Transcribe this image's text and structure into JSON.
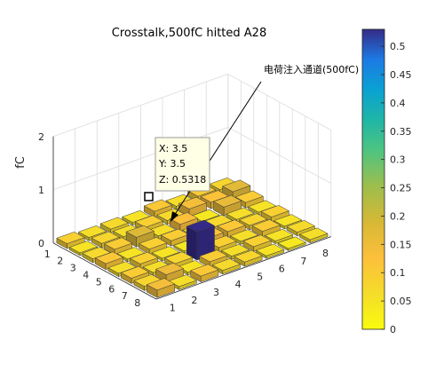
{
  "chart_data": {
    "type": "bar3",
    "title": "Crosstalk,500fC hitted A28",
    "zlabel": "fC",
    "xlabel": "",
    "ylabel": "",
    "x_ticks": [
      "1",
      "2",
      "3",
      "4",
      "5",
      "6",
      "7",
      "8"
    ],
    "y_ticks": [
      "1",
      "2",
      "3",
      "4",
      "5",
      "6",
      "7",
      "8"
    ],
    "z_ticks": [
      "0",
      "1",
      "2"
    ],
    "zlim": [
      0,
      2
    ],
    "colorbar": {
      "min": 0,
      "max": 0.53,
      "ticks": [
        "0",
        "0.05",
        "0.1",
        "0.15",
        "0.2",
        "0.25",
        "0.3",
        "0.35",
        "0.4",
        "0.45",
        "0.5"
      ],
      "colormap": "parula-reversed"
    },
    "grid": true,
    "values": [
      [
        0.14,
        0.06,
        0.11,
        0.07,
        0.08,
        0.05,
        0.04,
        0.06
      ],
      [
        0.08,
        0.15,
        0.05,
        0.1,
        0.06,
        0.09,
        0.05,
        0.07
      ],
      [
        0.1,
        0.06,
        0.08,
        0.53,
        0.09,
        0.06,
        0.1,
        0.05
      ],
      [
        0.06,
        0.09,
        0.05,
        0.04,
        0.12,
        0.11,
        0.08,
        0.09
      ],
      [
        0.11,
        0.05,
        0.09,
        0.1,
        0.05,
        0.07,
        0.06,
        0.05
      ],
      [
        0.07,
        0.1,
        0.18,
        0.06,
        0.13,
        0.04,
        0.16,
        0.1
      ],
      [
        0.05,
        0.08,
        0.06,
        0.09,
        0.07,
        0.14,
        0.12,
        0.17
      ],
      [
        0.09,
        0.06,
        0.07,
        0.05,
        0.11,
        0.06,
        0.1,
        0.08
      ]
    ],
    "annotation": {
      "text": "电荷注入通道(500fC)"
    },
    "datatip": {
      "x_label": "X: 3.5",
      "y_label": "Y: 3.5",
      "z_label": "Z: 0.5318"
    }
  }
}
